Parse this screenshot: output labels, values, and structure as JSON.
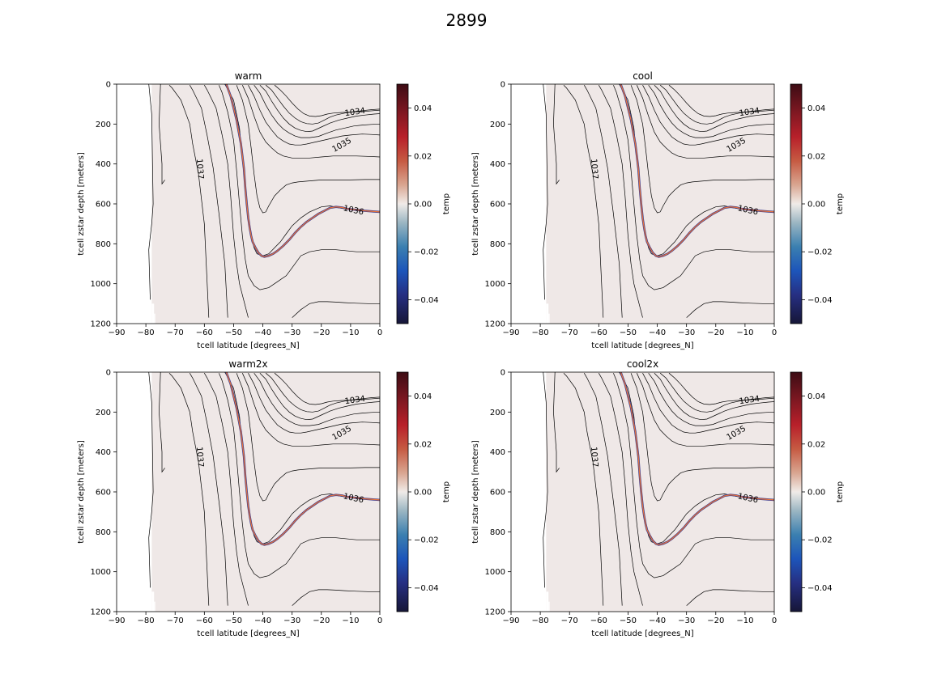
{
  "figure": {
    "suptitle": "2899"
  },
  "chart_data": [
    {
      "type": "heatmap",
      "title": "warm",
      "xlabel": "tcell latitude [degrees_N]",
      "ylabel": "tcell zstar depth [meters]",
      "xlim": [
        -90,
        0
      ],
      "ylim": [
        1200,
        0
      ],
      "xticks": [
        "−90",
        "−80",
        "−70",
        "−60",
        "−50",
        "−40",
        "−30",
        "−20",
        "−10",
        "0"
      ],
      "yticks": [
        "0",
        "200",
        "400",
        "600",
        "800",
        "1000",
        "1200"
      ],
      "colorbar": {
        "label": "temp",
        "range": [
          -0.05,
          0.05
        ],
        "ticks": [
          "0.04",
          "0.02",
          "0.00",
          "−0.02",
          "−0.04"
        ]
      },
      "field_value": 0.0,
      "contour_labels": [
        "1034",
        "1035",
        "1036",
        "1037"
      ]
    },
    {
      "type": "heatmap",
      "title": "cool",
      "xlabel": "tcell latitude [degrees_N]",
      "ylabel": "tcell zstar depth [meters]",
      "xlim": [
        -90,
        0
      ],
      "ylim": [
        1200,
        0
      ],
      "xticks": [
        "−90",
        "−80",
        "−70",
        "−60",
        "−50",
        "−40",
        "−30",
        "−20",
        "−10",
        "0"
      ],
      "yticks": [
        "0",
        "200",
        "400",
        "600",
        "800",
        "1000",
        "1200"
      ],
      "colorbar": {
        "label": "temp",
        "range": [
          -0.05,
          0.05
        ],
        "ticks": [
          "0.04",
          "0.02",
          "0.00",
          "−0.02",
          "−0.04"
        ]
      },
      "field_value": 0.0,
      "contour_labels": [
        "1034",
        "1035",
        "1036",
        "1037"
      ]
    },
    {
      "type": "heatmap",
      "title": "warm2x",
      "xlabel": "tcell latitude [degrees_N]",
      "ylabel": "tcell zstar depth [meters]",
      "xlim": [
        -90,
        0
      ],
      "ylim": [
        1200,
        0
      ],
      "xticks": [
        "−90",
        "−80",
        "−70",
        "−60",
        "−50",
        "−40",
        "−30",
        "−20",
        "−10",
        "0"
      ],
      "yticks": [
        "0",
        "200",
        "400",
        "600",
        "800",
        "1000",
        "1200"
      ],
      "colorbar": {
        "label": "temp",
        "range": [
          -0.05,
          0.05
        ],
        "ticks": [
          "0.04",
          "0.02",
          "0.00",
          "−0.02",
          "−0.04"
        ]
      },
      "field_value": 0.0,
      "contour_labels": [
        "1034",
        "1035",
        "1036",
        "1037"
      ]
    },
    {
      "type": "heatmap",
      "title": "cool2x",
      "xlabel": "tcell latitude [degrees_N]",
      "ylabel": "tcell zstar depth [meters]",
      "xlim": [
        -90,
        0
      ],
      "ylim": [
        1200,
        0
      ],
      "xticks": [
        "−90",
        "−80",
        "−70",
        "−60",
        "−50",
        "−40",
        "−30",
        "−20",
        "−10",
        "0"
      ],
      "yticks": [
        "0",
        "200",
        "400",
        "600",
        "800",
        "1000",
        "1200"
      ],
      "colorbar": {
        "label": "temp",
        "range": [
          -0.05,
          0.05
        ],
        "ticks": [
          "0.04",
          "0.02",
          "0.00",
          "−0.02",
          "−0.04"
        ]
      },
      "field_value": 0.0,
      "contour_labels": [
        "1034",
        "1035",
        "1036",
        "1037"
      ]
    }
  ],
  "contours": [
    {
      "lat": [
        -79,
        -78,
        -77.5,
        -78,
        -79,
        -78.5
      ],
      "depth": [
        0,
        150,
        600,
        700,
        830,
        1080
      ]
    },
    {
      "lat": [
        -75,
        -75.5,
        -74.5,
        -74.5,
        -73.5
      ],
      "depth": [
        0,
        200,
        400,
        500,
        480
      ]
    },
    {
      "lat": [
        -72,
        -71,
        -68,
        -65,
        -64,
        -62,
        -60,
        -58.5
      ],
      "depth": [
        5,
        20,
        80,
        200,
        300,
        450,
        700,
        1170
      ]
    },
    {
      "lat": [
        -65,
        -64,
        -61,
        -59,
        -57,
        -55,
        -53,
        -52
      ],
      "depth": [
        5,
        30,
        120,
        260,
        420,
        650,
        900,
        1170
      ]
    },
    {
      "lat": [
        -60,
        -59,
        -56,
        -54,
        -52,
        -51,
        -50,
        -49,
        -48,
        -45
      ],
      "depth": [
        5,
        30,
        120,
        250,
        400,
        560,
        760,
        900,
        1000,
        1170
      ]
    },
    {
      "lat": [
        -55,
        -54,
        -52,
        -50,
        -49,
        -48,
        -47,
        -46,
        -45,
        -43,
        -41,
        -38,
        -35,
        -32,
        -30,
        -27,
        -24,
        -20,
        -15,
        -8,
        0
      ],
      "depth": [
        5,
        40,
        140,
        280,
        430,
        600,
        760,
        880,
        960,
        1010,
        1030,
        1020,
        990,
        960,
        920,
        860,
        840,
        830,
        830,
        840,
        840
      ]
    },
    {
      "lat": [
        -53,
        -50,
        -48,
        -47,
        -46,
        -45,
        -44,
        -43,
        -42,
        -40,
        -38,
        -36,
        -34,
        -32,
        -30,
        -27,
        -24,
        -20,
        -17,
        -14,
        -10,
        -5,
        0
      ],
      "depth": [
        0,
        80,
        220,
        380,
        520,
        660,
        760,
        820,
        850,
        860,
        850,
        820,
        790,
        750,
        710,
        670,
        640,
        615,
        610,
        620,
        630,
        635,
        640
      ]
    },
    {
      "lat": [
        -49,
        -47,
        -45,
        -44,
        -43,
        -42,
        -41,
        -40,
        -39,
        -38,
        -36,
        -34,
        -32,
        -30,
        -28,
        -24,
        -20,
        -15,
        -10,
        -5,
        0
      ],
      "depth": [
        5,
        80,
        200,
        320,
        450,
        560,
        620,
        645,
        640,
        610,
        560,
        530,
        505,
        495,
        490,
        485,
        480,
        480,
        480,
        478,
        478
      ]
    },
    {
      "lat": [
        -47,
        -45,
        -43,
        -41,
        -39,
        -37,
        -35,
        -33,
        -30,
        -27,
        -24,
        -20,
        -16,
        -12,
        -8,
        -4,
        0
      ],
      "depth": [
        5,
        70,
        160,
        240,
        290,
        320,
        345,
        360,
        370,
        370,
        370,
        365,
        360,
        360,
        360,
        362,
        365
      ]
    },
    {
      "lat": [
        -45,
        -43,
        -41,
        -39,
        -37,
        -35,
        -33,
        -31,
        -29,
        -27,
        -25,
        -22,
        -19,
        -16,
        -13,
        -10,
        -6,
        -3,
        0
      ],
      "depth": [
        5,
        60,
        130,
        190,
        230,
        265,
        285,
        300,
        305,
        305,
        300,
        290,
        280,
        270,
        260,
        255,
        250,
        252,
        255
      ]
    },
    {
      "lat": [
        -43,
        -41,
        -39,
        -37,
        -35,
        -33,
        -31,
        -29,
        -27,
        -24,
        -21,
        -18,
        -15,
        -12,
        -9,
        -6,
        -3,
        0
      ],
      "depth": [
        5,
        45,
        105,
        155,
        195,
        225,
        245,
        260,
        268,
        268,
        262,
        245,
        230,
        220,
        210,
        205,
        202,
        200
      ]
    },
    {
      "lat": [
        -41,
        -39,
        -37,
        -35,
        -33,
        -31,
        -29,
        -27,
        -25,
        -23,
        -20,
        -17,
        -14,
        -11,
        -8,
        -5,
        -2,
        0
      ],
      "depth": [
        5,
        35,
        85,
        130,
        170,
        200,
        220,
        232,
        238,
        235,
        215,
        195,
        180,
        170,
        160,
        155,
        150,
        148
      ]
    },
    {
      "lat": [
        -39,
        -37,
        -35,
        -33,
        -31,
        -29,
        -27,
        -25,
        -23,
        -21,
        -19,
        -17,
        -15,
        -12,
        -9,
        -6,
        -3,
        0
      ],
      "depth": [
        5,
        30,
        70,
        110,
        145,
        170,
        188,
        198,
        200,
        195,
        180,
        165,
        155,
        145,
        138,
        133,
        128,
        125
      ]
    },
    {
      "lat": [
        -36,
        -34,
        -32,
        -30,
        -28,
        -26,
        -24,
        -22,
        -20,
        -18,
        -16,
        -13,
        -10,
        -7,
        -4,
        0
      ],
      "depth": [
        5,
        30,
        60,
        95,
        125,
        148,
        160,
        162,
        158,
        150,
        145,
        142,
        140,
        138,
        135,
        130
      ]
    },
    {
      "lat": [
        -30,
        -27,
        -24,
        -21,
        -18,
        -15,
        -12,
        -8,
        -4,
        0
      ],
      "depth": [
        1170,
        1130,
        1100,
        1090,
        1090,
        1092,
        1095,
        1098,
        1100,
        1100
      ]
    }
  ],
  "highlight_contour": {
    "lat": [
      -52.5,
      -51,
      -49,
      -47.5,
      -46.5,
      -46,
      -45.5,
      -45,
      -44.5,
      -44,
      -43.5,
      -42.5,
      -41.5,
      -40.5,
      -39.5,
      -38,
      -36.5,
      -35,
      -33,
      -31,
      -29,
      -27,
      -25,
      -23,
      -21,
      -19,
      -17,
      -15,
      -13,
      -11,
      -8,
      -5,
      -2,
      0
    ],
    "depth": [
      0,
      60,
      180,
      300,
      420,
      520,
      600,
      670,
      720,
      760,
      790,
      820,
      845,
      860,
      865,
      860,
      850,
      835,
      810,
      780,
      745,
      715,
      690,
      670,
      650,
      635,
      620,
      615,
      618,
      625,
      630,
      635,
      638,
      640
    ]
  },
  "mask": {
    "land_lat_max": -78.0,
    "steps": [
      {
        "lat_from": -78.0,
        "lat_to": -77.2,
        "depth_to": 1100
      },
      {
        "lat_from": -77.2,
        "lat_to": -76.8,
        "depth_to": 1150
      }
    ]
  },
  "contour_label_positions": [
    {
      "label": "1034",
      "lat": -8.5,
      "depth": 140,
      "angle": -8
    },
    {
      "label": "1035",
      "lat": -13,
      "depth": 305,
      "angle": -30
    },
    {
      "label": "1036",
      "lat": -9,
      "depth": 632,
      "angle": 12
    },
    {
      "label": "1037",
      "lat": -61.5,
      "depth": 425,
      "angle": 86
    }
  ],
  "colors": {
    "field": "#efe8e7",
    "contour": "#000000",
    "highlight_outer": "#3b3b8f",
    "highlight_inner": "#e8743b"
  }
}
